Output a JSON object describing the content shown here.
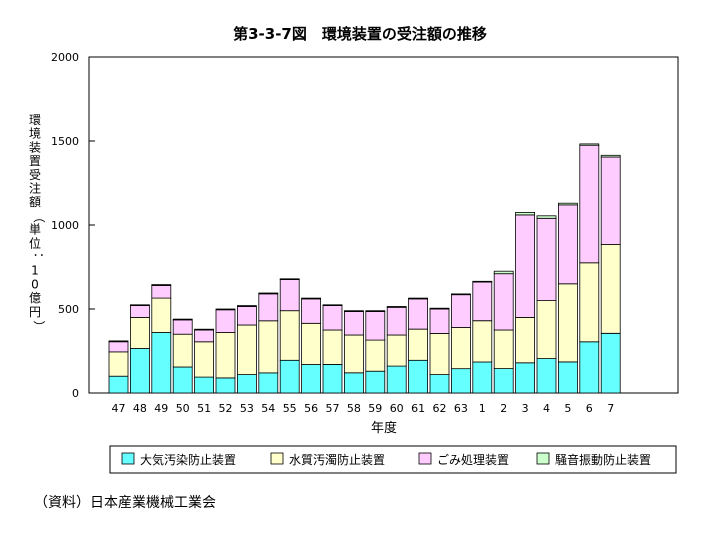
{
  "chart_data": {
    "type": "bar",
    "stacked": true,
    "title": "第3-3-7図　環境装置の受注額の推移",
    "xlabel": "年度",
    "ylabel": "環境装置受注額（単位：10億円）",
    "ylim": [
      0,
      2000
    ],
    "yticks": [
      0,
      500,
      1000,
      1500,
      2000
    ],
    "grid": false,
    "legend_position": "bottom",
    "categories": [
      "47",
      "48",
      "49",
      "50",
      "51",
      "52",
      "53",
      "54",
      "55",
      "56",
      "57",
      "58",
      "59",
      "60",
      "61",
      "62",
      "63",
      "1",
      "2",
      "3",
      "4",
      "5",
      "6",
      "7"
    ],
    "series": [
      {
        "name": "大気汚染防止装置",
        "color": "#66ffff",
        "values": [
          100,
          265,
          360,
          155,
          95,
          90,
          110,
          120,
          195,
          170,
          170,
          120,
          130,
          160,
          195,
          110,
          145,
          185,
          145,
          180,
          205,
          185,
          305,
          355
        ]
      },
      {
        "name": "水質汚濁防止装置",
        "color": "#ffffcc",
        "values": [
          145,
          185,
          205,
          195,
          210,
          270,
          295,
          310,
          295,
          245,
          205,
          225,
          185,
          185,
          185,
          245,
          245,
          245,
          230,
          270,
          345,
          465,
          470,
          530
        ]
      },
      {
        "name": "ごみ処理装置",
        "color": "#ffccff",
        "values": [
          60,
          70,
          75,
          85,
          70,
          135,
          110,
          160,
          185,
          145,
          145,
          140,
          170,
          165,
          180,
          145,
          195,
          230,
          335,
          610,
          490,
          470,
          700,
          520
        ]
      },
      {
        "name": "騒音振動防止装置",
        "color": "#ccffcc",
        "values": [
          5,
          5,
          5,
          5,
          5,
          5,
          5,
          5,
          5,
          5,
          5,
          5,
          5,
          5,
          5,
          5,
          5,
          5,
          15,
          15,
          15,
          10,
          8,
          10
        ]
      }
    ]
  },
  "source_note": "（資料）日本産業機械工業会"
}
